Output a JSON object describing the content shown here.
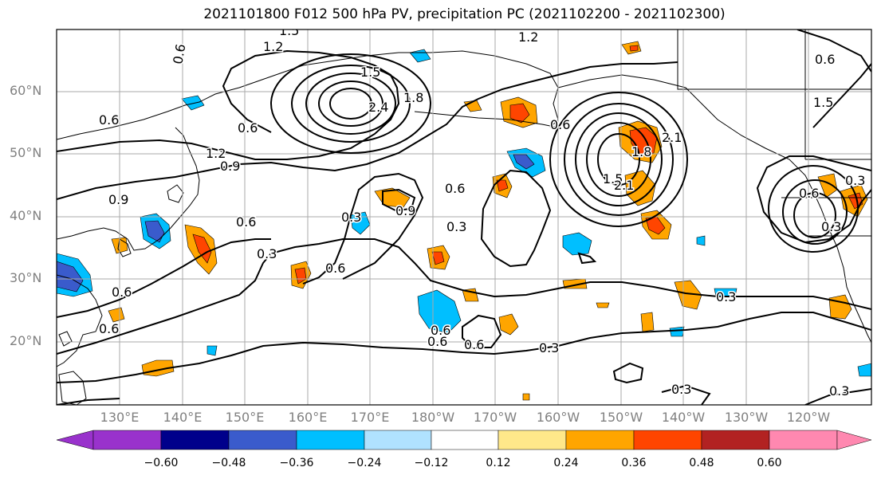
{
  "title": "2021101800 F012 500 hPa PV, precipitation PC (2021102200 - 2021102300)",
  "lat_labels": [
    "60°N",
    "50°N",
    "40°N",
    "30°N",
    "20°N"
  ],
  "lon_labels": [
    "130°E",
    "140°E",
    "150°E",
    "160°E",
    "170°E",
    "180°W",
    "170°W",
    "160°W",
    "150°W",
    "140°W",
    "130°W",
    "120°W"
  ],
  "contour_labels": [
    "1.5",
    "1.2",
    "1.2",
    "0.9",
    "0.6",
    "0.6",
    "1.5",
    "1.8",
    "2.4",
    "0.6",
    "1.2",
    "0.9",
    "0.6",
    "0.6",
    "0.3",
    "0.9",
    "0.6",
    "0.6",
    "0.3",
    "0.3",
    "0.6",
    "0.6",
    "0.3",
    "1.5",
    "1.8",
    "2.1",
    "2.1",
    "0.3",
    "0.3",
    "0.3",
    "0.6",
    "1.5",
    "0.3",
    "0.6",
    "0.3",
    "0.6",
    "0.6",
    "0.6"
  ],
  "colorbar": {
    "ticks": [
      "−0.60",
      "−0.48",
      "−0.36",
      "−0.24",
      "−0.12",
      "0.12",
      "0.24",
      "0.36",
      "0.48",
      "0.60"
    ],
    "colors": [
      "#9932cc",
      "#00008b",
      "#3a5bcc",
      "#00bfff",
      "#b0e2ff",
      "#ffffff",
      "#ffe88a",
      "#ffa500",
      "#ff4500",
      "#b22222",
      "#ff88b0"
    ]
  }
}
